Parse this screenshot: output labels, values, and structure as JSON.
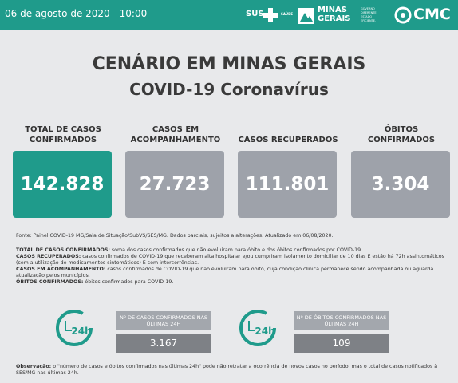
{
  "header": {
    "date": "06 de agosto de 2020 - 10:00",
    "logos": [
      "SUS",
      "SAÚDE",
      "MINAS GERAIS",
      "GOVERNO DIFERENTE. ESTADO EFICIENTE.",
      "CMC"
    ]
  },
  "title": "CENÁRIO EM MINAS GERAIS",
  "subtitle": "COVID-19 Coronavírus",
  "cards": [
    {
      "label": "TOTAL DE CASOS CONFIRMADOS",
      "value": "142.828"
    },
    {
      "label": "CASOS EM ACOMPANHAMENTO",
      "value": "27.723"
    },
    {
      "label": "CASOS RECUPERADOS",
      "value": "111.801"
    },
    {
      "label": "ÓBITOS CONFIRMADOS",
      "value": "3.304"
    }
  ],
  "source": "Fonte: Painel COVID-19 MG/Sala de Situação/SubVS/SES/MG. Dados parciais, sujeitos a alterações. Atualizado em 06/08/2020.",
  "definitions": [
    {
      "term": "TOTAL DE CASOS CONFIRMADOS:",
      "text": "soma dos casos confirmados que não evoluíram para óbito e dos óbitos confirmados por COVID-19."
    },
    {
      "term": "CASOS RECUPERADOS:",
      "text": "casos confirmados de COVID-19 que receberam alta hospitalar e/ou cumpriram isolamento domiciliar de 10 dias E estão há 72h assintomáticos (sem a utilização de medicamentos sintomáticos) E sem intercorrências."
    },
    {
      "term": "CASOS EM ACOMPANHAMENTO:",
      "text": "casos confirmados de COVID-19 que não evoluíram para óbito, cuja condição clínica permanece sendo acompanhada ou aguarda atualização pelos municípios."
    },
    {
      "term": "ÓBITOS CONFIRMADOS:",
      "text": "óbitos confirmados para COVID-19."
    }
  ],
  "indicators": [
    {
      "icon": "24h",
      "label": "Nº DE CASOS CONFIRMADOS NAS ÚLTIMAS 24H",
      "value": "3.167"
    },
    {
      "icon": "24h",
      "label": "Nº DE ÓBITOS CONFIRMADOS NAS ÚLTIMAS 24H",
      "value": "109"
    }
  ],
  "observation": {
    "term": "Observação:",
    "text": "o \"número de casos e óbitos confirmados nas últimas 24h\" pode não retratar a ocorrência de novos casos no período, mas o total de casos notificados à SES/MG nas últimas 24h."
  }
}
